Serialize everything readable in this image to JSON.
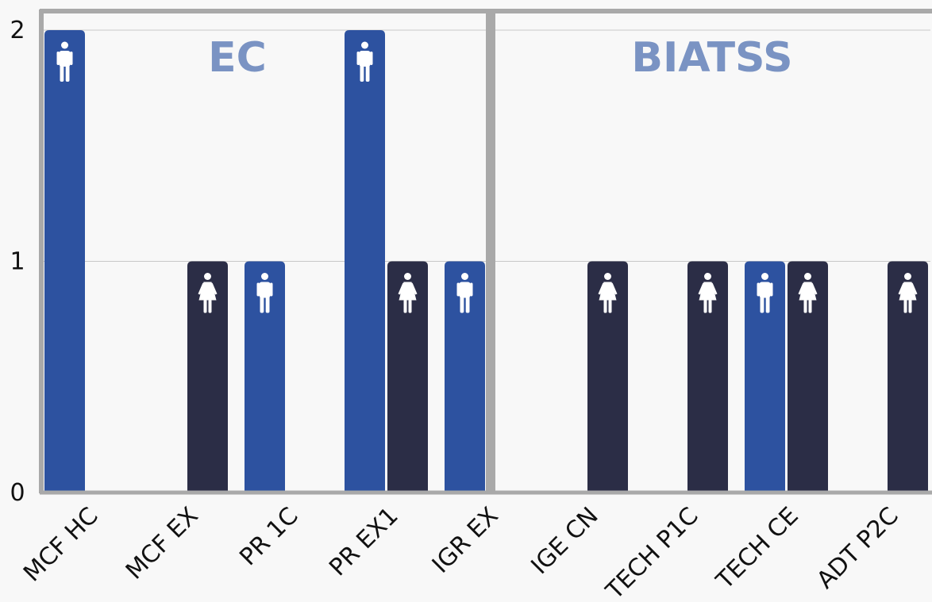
{
  "chart_data": {
    "type": "bar",
    "title": "",
    "xlabel": "",
    "ylabel": "",
    "ylim": [
      0,
      2
    ],
    "yticks": [
      "0",
      "1",
      "2"
    ],
    "grid": true,
    "groups": [
      {
        "label": "EC",
        "categories": [
          "MCF HC",
          "MCF EX",
          "PR 1C",
          "PR EX1",
          "IGR EX"
        ]
      },
      {
        "label": "BIATSS",
        "categories": [
          "IGE CN",
          "TECH P1C",
          "TECH CE",
          "ADT P2C"
        ]
      }
    ],
    "categories": [
      "MCF HC",
      "MCF EX",
      "PR 1C",
      "PR EX1",
      "IGR EX",
      "IGE CN",
      "TECH P1C",
      "TECH CE",
      "ADT P2C"
    ],
    "series": [
      {
        "icon": "male-icon",
        "color": "#2d52a0",
        "values": [
          2,
          0,
          1,
          2,
          1,
          0,
          0,
          1,
          0
        ]
      },
      {
        "icon": "female-icon",
        "color": "#2b2d46",
        "values": [
          0,
          1,
          0,
          1,
          0,
          1,
          1,
          1,
          1
        ]
      }
    ],
    "colors": {
      "background": "#f8f8f8",
      "frame": "#a9a9a9",
      "gridline": "#c8c8c8",
      "group_label": "#7a93c3",
      "icon": "#ffffff"
    }
  }
}
